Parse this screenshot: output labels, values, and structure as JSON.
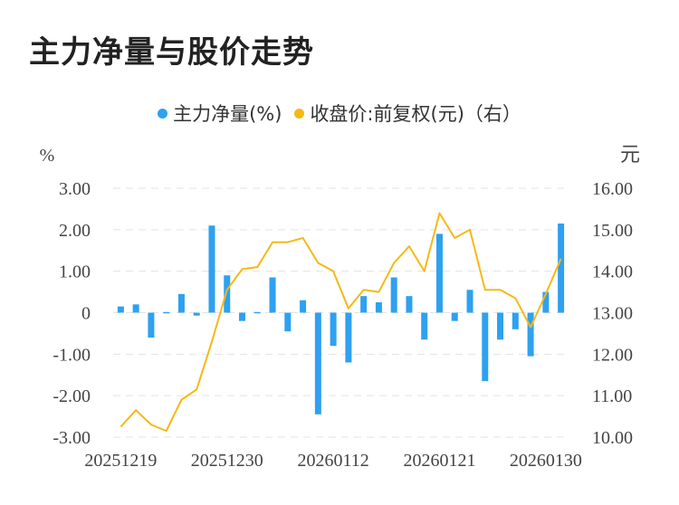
{
  "title": "主力净量与股价走势",
  "legend": {
    "flow_label": "主力净量(%)",
    "price_label": "收盘价:前复权(元)（右）"
  },
  "colors": {
    "bar": "#2ea1f0",
    "line": "#f5b915",
    "grid": "#e3e3e3",
    "text": "#444444"
  },
  "chart_data": {
    "type": "bar+line",
    "title": "主力净量与股价走势",
    "y_left_label": "%",
    "y_right_label": "元",
    "y_left_range": [
      -3,
      3
    ],
    "y_right_range": [
      10,
      16
    ],
    "y_left_ticks": [
      "3.00",
      "2.00",
      "1.00",
      "0",
      "-1.00",
      "-2.00",
      "-3.00"
    ],
    "y_right_ticks": [
      "16.00",
      "15.00",
      "14.00",
      "13.00",
      "12.00",
      "11.00",
      "10.00"
    ],
    "x_tick_labels": [
      {
        "index": 0,
        "label": "20251219"
      },
      {
        "index": 7,
        "label": "20251230"
      },
      {
        "index": 14,
        "label": "20260112"
      },
      {
        "index": 21,
        "label": "20260121"
      },
      {
        "index": 28,
        "label": "20260130"
      }
    ],
    "series": [
      {
        "name": "主力净量(%)",
        "type": "bar",
        "axis": "left",
        "values": [
          0.15,
          0.2,
          -0.6,
          -0.03,
          0.45,
          -0.07,
          2.1,
          0.9,
          -0.2,
          0.02,
          0.85,
          -0.45,
          0.3,
          -2.45,
          -0.8,
          -1.2,
          0.4,
          0.25,
          0.85,
          0.4,
          -0.65,
          1.9,
          -0.2,
          0.55,
          -1.65,
          -0.65,
          -0.4,
          -1.05,
          0.5,
          2.15
        ]
      },
      {
        "name": "收盘价:前复权(元)（右）",
        "type": "line",
        "axis": "right",
        "values": [
          10.25,
          10.65,
          10.3,
          10.15,
          10.9,
          11.15,
          12.3,
          13.55,
          14.05,
          14.1,
          14.7,
          14.7,
          14.8,
          14.2,
          14.0,
          13.1,
          13.55,
          13.5,
          14.2,
          14.6,
          14.0,
          15.4,
          14.8,
          15.0,
          13.55,
          13.55,
          13.35,
          12.65,
          13.45,
          14.3
        ]
      }
    ]
  }
}
